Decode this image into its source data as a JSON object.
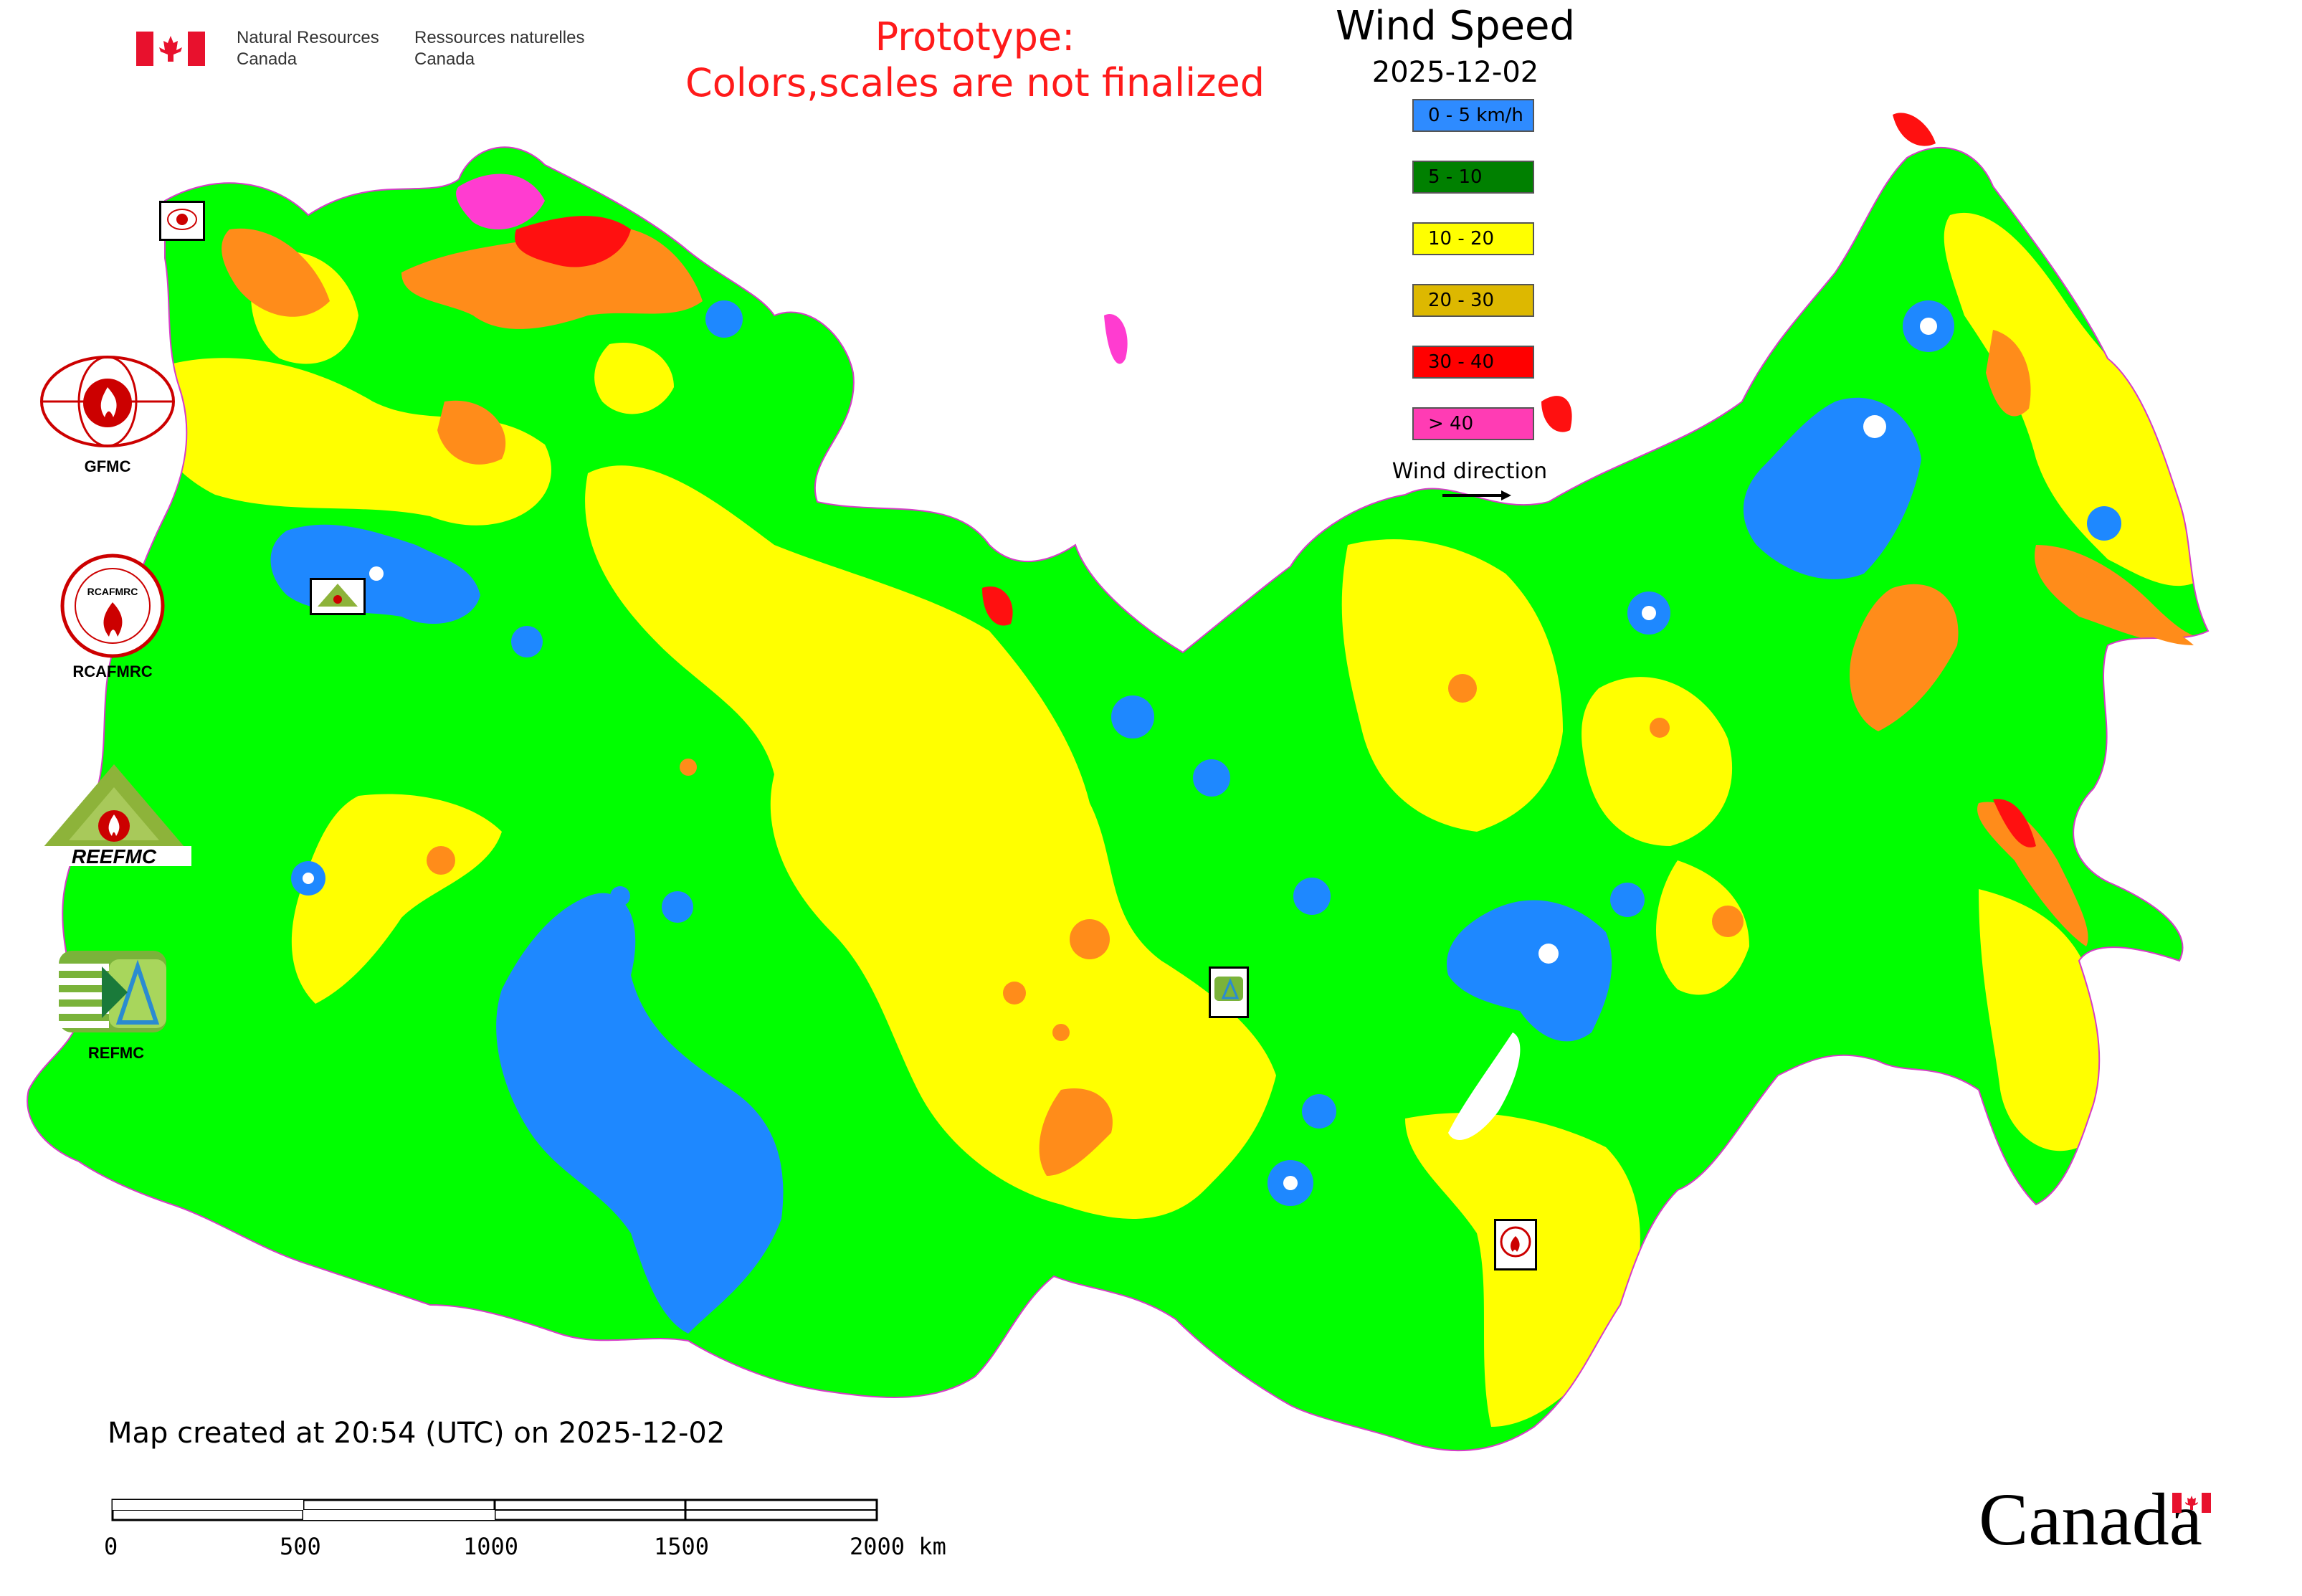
{
  "header": {
    "org_en": [
      "Natural Resources",
      "Canada"
    ],
    "org_fr": [
      "Ressources naturelles",
      "Canada"
    ],
    "prototype_line1": "Prototype:",
    "prototype_line2": "Colors,scales are not finalized"
  },
  "legend": {
    "title": "Wind Speed",
    "date": "2025-12-02",
    "items": [
      {
        "label": "0 - 5 km/h",
        "color": "#2e8bff"
      },
      {
        "label": "5 - 10",
        "color": "#008000"
      },
      {
        "label": "10 - 20",
        "color": "#ffff00"
      },
      {
        "label": "20 - 30",
        "color": "#ddb800"
      },
      {
        "label": "30 - 40",
        "color": "#ff0000"
      },
      {
        "label": "> 40",
        "color": "#ff3cb4"
      }
    ],
    "wind_direction_label": "Wind direction"
  },
  "map_colors": {
    "calm": "#1e88ff",
    "light": "#00ff00",
    "moderate": "#ffff00",
    "fresh": "#ff8c1a",
    "strong": "#ff1010",
    "gale": "#ff3cd0",
    "border": "#d63cc8"
  },
  "partner_logos": [
    {
      "name": "GFMC",
      "label": "GFMC"
    },
    {
      "name": "RCAFMRC",
      "label": "RCAFMRC",
      "inner": "RCAFMRC"
    },
    {
      "name": "REEFMC",
      "label": "REEFMC"
    },
    {
      "name": "REFMC",
      "label": "REFMC"
    }
  ],
  "map_markers": [
    {
      "name": "GFMC"
    },
    {
      "name": "REEFMC"
    },
    {
      "name": "REFMC"
    },
    {
      "name": "RCAFMRC"
    }
  ],
  "footer": {
    "created": "Map created at 20:54 (UTC) on 2025-12-02",
    "scale_labels": [
      "0",
      "500",
      "1000",
      "1500",
      "2000 km"
    ]
  },
  "wordmark": "Canada"
}
